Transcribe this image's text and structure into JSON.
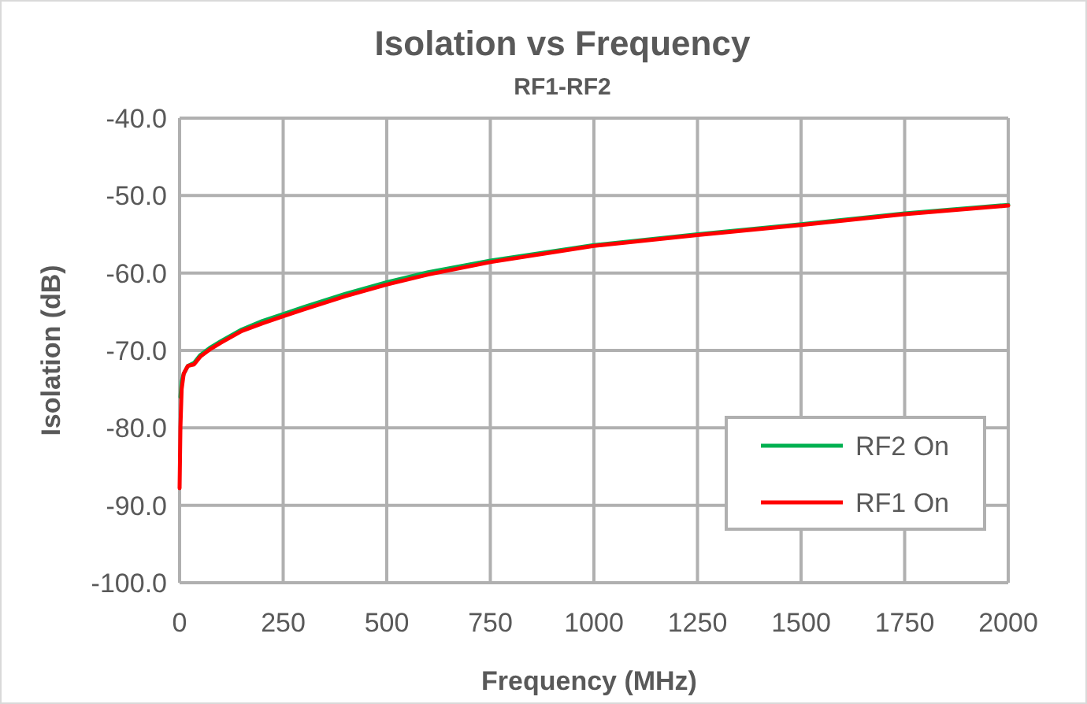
{
  "chart_data": {
    "type": "line",
    "title": "Isolation vs Frequency",
    "subtitle": "RF1-RF2",
    "xlabel": "Frequency (MHz)",
    "ylabel": "Isolation (dB)",
    "xlim": [
      0,
      2000
    ],
    "xticks": [
      0,
      250,
      500,
      750,
      1000,
      1250,
      1500,
      1750,
      2000
    ],
    "ylim": [
      -100,
      -40
    ],
    "yticks": [
      {
        "value": -100,
        "label": "-100.0"
      },
      {
        "value": -90,
        "label": "-90.0"
      },
      {
        "value": -80,
        "label": "-80.0"
      },
      {
        "value": -70,
        "label": "-70.0"
      },
      {
        "value": -60,
        "label": "-60.0"
      },
      {
        "value": -50,
        "label": "-50.0"
      },
      {
        "value": -40,
        "label": "-40.0"
      }
    ],
    "grid": true,
    "legend": "bottom right",
    "marker": "none",
    "line_style": "solid",
    "series": [
      {
        "name": "RF2 On",
        "color": "#00b050",
        "x": [
          2,
          5,
          10,
          20,
          35,
          50,
          75,
          100,
          150,
          200,
          250,
          300,
          400,
          500,
          600,
          750,
          1000,
          1250,
          1500,
          1750,
          2000
        ],
        "values": [
          -76,
          -74,
          -73,
          -72,
          -71.6,
          -70.6,
          -69.6,
          -68.8,
          -67.3,
          -66.2,
          -65.3,
          -64.4,
          -62.7,
          -61.2,
          -59.9,
          -58.4,
          -56.4,
          -55,
          -53.7,
          -52.3,
          -51.2
        ]
      },
      {
        "name": "RF1 On",
        "color": "#ff0000",
        "x": [
          0,
          2,
          5,
          10,
          20,
          35,
          50,
          75,
          100,
          150,
          200,
          250,
          300,
          400,
          500,
          600,
          750,
          1000,
          1250,
          1500,
          1750,
          2000
        ],
        "values": [
          -87.8,
          -80,
          -75,
          -73,
          -72,
          -71.8,
          -70.8,
          -69.8,
          -69,
          -67.5,
          -66.5,
          -65.6,
          -64.7,
          -63,
          -61.5,
          -60.2,
          -58.6,
          -56.5,
          -55.1,
          -53.8,
          -52.4,
          -51.3
        ]
      }
    ]
  }
}
